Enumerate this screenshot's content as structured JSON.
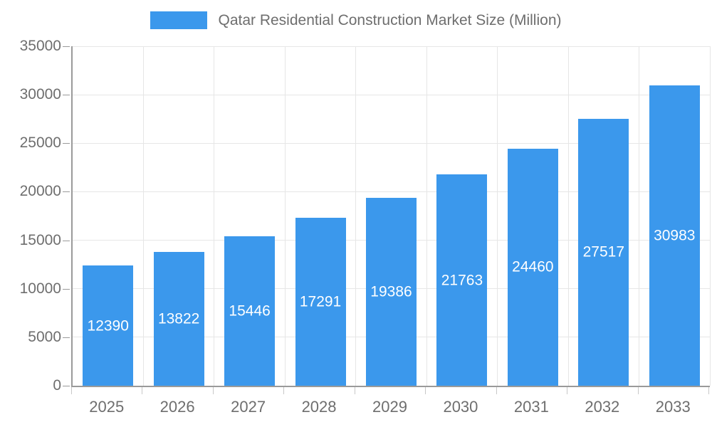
{
  "legend": {
    "label": "Qatar Residential Construction Market Size (Million)"
  },
  "colors": {
    "bar": "#3b98ec",
    "axis_text": "#6e6e6e",
    "grid": "#e6e6e6",
    "axis_line": "#9a9a9a",
    "value_label": "#ffffff"
  },
  "chart_data": {
    "type": "bar",
    "title": "Qatar Residential Construction Market Size (Million)",
    "xlabel": "",
    "ylabel": "",
    "categories": [
      "2025",
      "2026",
      "2027",
      "2028",
      "2029",
      "2030",
      "2031",
      "2032",
      "2033"
    ],
    "values": [
      12390,
      13822,
      15446,
      17291,
      19386,
      21763,
      24460,
      27517,
      30983
    ],
    "value_labels_shown": [
      "12390",
      "13822",
      "15446",
      "17291",
      "19386",
      "21763",
      "24460",
      "27517",
      "30983"
    ],
    "ylim": [
      0,
      35000
    ],
    "yticks": [
      0,
      5000,
      10000,
      15000,
      20000,
      25000,
      30000,
      35000
    ],
    "grid": "on",
    "legend_position": "top",
    "legend_entries": [
      "Qatar Residential Construction Market Size (Million)"
    ],
    "bar_color": "#3b98ec",
    "value_label_style": "white, centered inside bar"
  }
}
